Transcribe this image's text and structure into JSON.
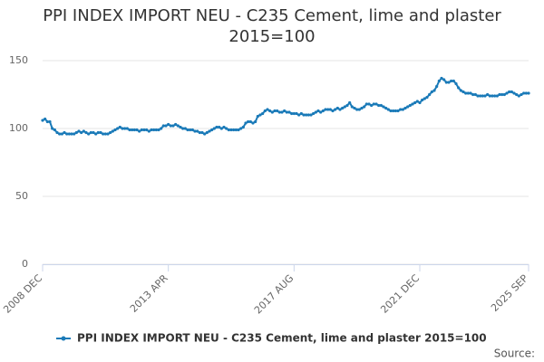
{
  "chart_data": {
    "type": "line",
    "title": "PPI INDEX IMPORT NEU - C235 Cement, lime and plaster 2015=100",
    "source": "Source:",
    "categories": [
      "2008 DEC",
      null,
      null,
      null,
      null,
      null,
      null,
      null,
      null,
      null,
      null,
      null,
      null,
      null,
      null,
      null,
      null,
      null,
      null,
      null,
      null,
      null,
      null,
      null,
      null,
      null,
      null,
      null,
      null,
      null,
      null,
      null,
      null,
      null,
      null,
      null,
      null,
      null,
      null,
      null,
      null,
      null,
      null,
      null,
      null,
      null,
      null,
      null,
      null,
      null,
      null,
      null,
      "2013 APR",
      null,
      null,
      null,
      null,
      null,
      null,
      null,
      null,
      null,
      null,
      null,
      null,
      null,
      null,
      null,
      null,
      null,
      null,
      null,
      null,
      null,
      null,
      null,
      null,
      null,
      null,
      null,
      null,
      null,
      null,
      null,
      null,
      null,
      null,
      null,
      null,
      null,
      null,
      null,
      null,
      null,
      null,
      null,
      null,
      null,
      null,
      null,
      null,
      null,
      null,
      null,
      "2017 AUG",
      null,
      null,
      null,
      null,
      null,
      null,
      null,
      null,
      null,
      null,
      null,
      null,
      null,
      null,
      null,
      null,
      null,
      null,
      null,
      null,
      null,
      null,
      null,
      null,
      null,
      null,
      null,
      null,
      null,
      null,
      null,
      null,
      null,
      null,
      null,
      null,
      null,
      null,
      null,
      null,
      null,
      null,
      null,
      null,
      null,
      null,
      null,
      null,
      null,
      null,
      null,
      "2021 DEC",
      null,
      null,
      null,
      null,
      null,
      null,
      null,
      null,
      null,
      null,
      null,
      null,
      null,
      null,
      null,
      null,
      null,
      null,
      null,
      null,
      null,
      null,
      null,
      null,
      null,
      null,
      null,
      null,
      null,
      null,
      null,
      null,
      null,
      null,
      null,
      null,
      null,
      null,
      null,
      null,
      null,
      null,
      null,
      null,
      "2025 SEP"
    ],
    "series": [
      {
        "name": "PPI INDEX IMPORT NEU - C235 Cement, lime and plaster 2015=100",
        "color": "#1a7ab8",
        "values": [
          106,
          107,
          105,
          105,
          100,
          99,
          97,
          96,
          96,
          97,
          96,
          96,
          96,
          96,
          97,
          98,
          97,
          98,
          97,
          96,
          97,
          97,
          96,
          97,
          97,
          96,
          96,
          96,
          97,
          98,
          99,
          100,
          101,
          100,
          100,
          100,
          99,
          99,
          99,
          99,
          98,
          99,
          99,
          99,
          98,
          99,
          99,
          99,
          99,
          100,
          102,
          102,
          103,
          102,
          102,
          103,
          102,
          101,
          100,
          100,
          99,
          99,
          99,
          98,
          98,
          97,
          97,
          96,
          97,
          98,
          99,
          100,
          101,
          101,
          100,
          101,
          100,
          99,
          99,
          99,
          99,
          99,
          100,
          101,
          104,
          105,
          105,
          104,
          105,
          109,
          110,
          111,
          113,
          114,
          113,
          112,
          113,
          113,
          112,
          112,
          113,
          112,
          112,
          111,
          111,
          111,
          110,
          111,
          110,
          110,
          110,
          110,
          111,
          112,
          113,
          112,
          113,
          114,
          114,
          114,
          113,
          114,
          115,
          114,
          115,
          116,
          117,
          119,
          116,
          115,
          114,
          114,
          115,
          116,
          118,
          118,
          117,
          118,
          118,
          117,
          117,
          116,
          115,
          114,
          113,
          113,
          113,
          113,
          114,
          114,
          115,
          116,
          117,
          118,
          119,
          120,
          119,
          121,
          122,
          123,
          125,
          127,
          128,
          131,
          135,
          137,
          136,
          134,
          134,
          135,
          135,
          133,
          130,
          128,
          127,
          126,
          126,
          126,
          125,
          125,
          124,
          124,
          124,
          124,
          125,
          124,
          124,
          124,
          124,
          125,
          125,
          125,
          126,
          127,
          127,
          126,
          125,
          124,
          125,
          126,
          126,
          126
        ]
      }
    ],
    "ylim": [
      0,
      155
    ],
    "yticks": [
      0,
      50,
      100,
      150
    ],
    "grid": true,
    "legend": "bottom"
  }
}
